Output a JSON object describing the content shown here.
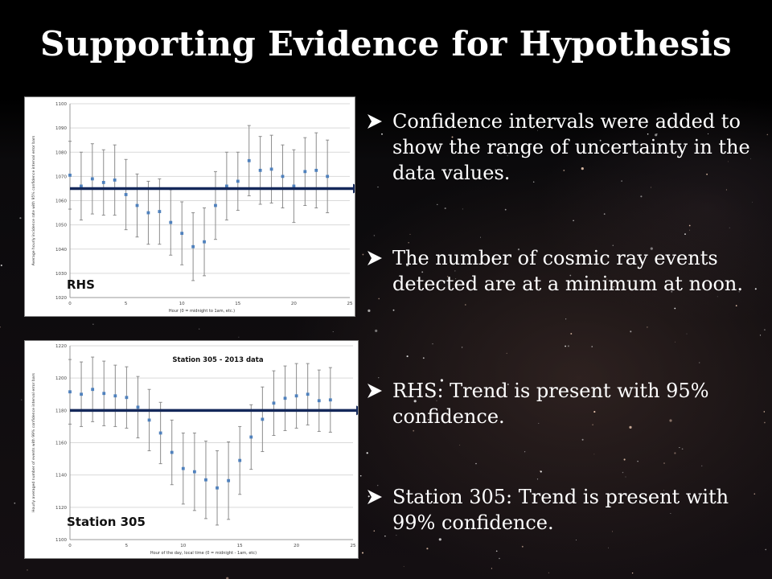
{
  "slide": {
    "title": "Supporting Evidence for Hypothesis",
    "bullet_icon": "arrowhead-bullet-icon",
    "bullets": [
      "Confidence intervals were added to show the range of uncertainty in the data values.",
      "The number of cosmic ray events detected are at a minimum at noon.",
      "RHS: Trend is present with 95% confidence.",
      "Station 305: Trend is present with 99% confidence."
    ]
  },
  "chart_data": [
    {
      "type": "scatter",
      "title": "",
      "tag": "RHS",
      "xlabel": "Hour (0 = midnight to 1am, etc.)",
      "ylabel": "Average hourly incidence rate with 95% confidence interval error bars",
      "xlim": [
        0,
        25
      ],
      "ylim": [
        1020,
        1100
      ],
      "xticks": [
        0,
        5,
        10,
        15,
        20,
        25
      ],
      "yticks": [
        1020,
        1030,
        1040,
        1050,
        1060,
        1070,
        1080,
        1090,
        1100
      ],
      "grid": true,
      "error_bars": "95% confidence interval",
      "trend_arrow_y": 1065,
      "marker_color": "#4f81bd",
      "x": [
        0,
        1,
        2,
        3,
        4,
        5,
        6,
        7,
        8,
        9,
        10,
        11,
        12,
        13,
        14,
        15,
        16,
        17,
        18,
        19,
        20,
        21,
        22,
        23
      ],
      "y": [
        1070.5,
        1066,
        1069,
        1067.5,
        1068.5,
        1062.5,
        1058,
        1055,
        1055.5,
        1051,
        1046.5,
        1041,
        1043,
        1058,
        1066,
        1068,
        1076.5,
        1072.5,
        1073,
        1070,
        1066,
        1072,
        1072.5,
        1070
      ],
      "err": [
        14,
        14,
        14.5,
        13.5,
        14.5,
        14.5,
        13,
        13,
        13.5,
        13.5,
        13,
        14,
        14,
        14,
        14,
        12,
        14.5,
        14,
        14,
        13,
        15,
        14,
        15.5,
        15
      ]
    },
    {
      "type": "scatter",
      "title": "Station 305 - 2013 data",
      "tag": "Station 305",
      "xlabel": "Hour of the day, local time (0 = midnight - 1am, etc)",
      "ylabel": "Hourly averaged number of events with 99% confidence interval error bars",
      "xlim": [
        0,
        25
      ],
      "ylim": [
        1100,
        1220
      ],
      "xticks": [
        0,
        5,
        10,
        15,
        20,
        25
      ],
      "yticks": [
        1100,
        1120,
        1140,
        1160,
        1180,
        1200,
        1220
      ],
      "grid": true,
      "error_bars": "99% confidence interval",
      "trend_arrow_y": 1180,
      "marker_color": "#4f81bd",
      "x": [
        0,
        1,
        2,
        3,
        4,
        5,
        6,
        7,
        8,
        9,
        10,
        11,
        12,
        13,
        14,
        15,
        16,
        17,
        18,
        19,
        20,
        21,
        22,
        23
      ],
      "y": [
        1191.5,
        1190,
        1193,
        1190.5,
        1189,
        1188,
        1182,
        1174,
        1166,
        1154,
        1144,
        1142,
        1137,
        1132,
        1136.5,
        1149,
        1163.5,
        1174.5,
        1184.5,
        1187.5,
        1189,
        1190,
        1186,
        1186.5
      ],
      "err": [
        20,
        20,
        20,
        20,
        19,
        19,
        19,
        19,
        19,
        20,
        22,
        24,
        24,
        23,
        24,
        21,
        20,
        20,
        20,
        20,
        20,
        19,
        19,
        20
      ]
    }
  ]
}
